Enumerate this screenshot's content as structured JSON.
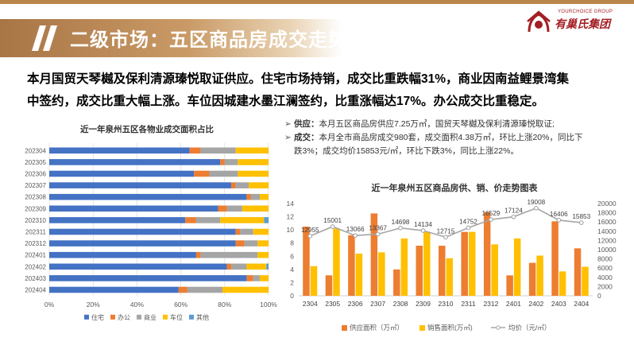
{
  "header": {
    "title": "二级市场：五区商品房成交走势",
    "logo_sub": "YOURCHOICE GROUP",
    "logo_main": "有巢氏集团"
  },
  "summary": {
    "line1": "本月国贸天琴樾及保利清源瑧悦取证供应。住宅市场持销，成交比重跌幅31%，商业因南益鲤景湾集",
    "line2": "中签约，成交比重大幅上涨。车位因城建水墨江澜签约，比重涨幅达17%。办公成交比重稳定。"
  },
  "notes": {
    "supply_label": "供应：",
    "supply_text": "本月五区商品房供应7.25万㎡，国贸天琴樾及保利清源瑧悦取证;",
    "deal_label": "成交：",
    "deal_text_1": "本月全市商品房成交980套，成交面积4.38万㎡，环比上涨20%，同比下",
    "deal_text_2": "跌3%；成交均价15853元/㎡，环比下跌3%，同比上涨22%。",
    "bullet": "➢"
  },
  "chart_data": [
    {
      "type": "bar",
      "orientation": "horizontal",
      "stacked": true,
      "title": "近一年泉州五区各物业成交面积占比",
      "categories": [
        "202304",
        "202305",
        "202306",
        "202307",
        "202308",
        "202309",
        "202310",
        "202311",
        "202312",
        "202401",
        "202402",
        "202403",
        "202404"
      ],
      "series": [
        {
          "name": "住宅",
          "color": "#4472c4",
          "values": [
            64,
            78,
            66,
            83,
            90,
            77,
            62,
            85,
            85,
            67,
            81,
            90,
            59
          ]
        },
        {
          "name": "办公",
          "color": "#ed7d31",
          "values": [
            5,
            2,
            7,
            2,
            2,
            4,
            5,
            2,
            4,
            2,
            2,
            3,
            4
          ]
        },
        {
          "name": "商业",
          "color": "#a5a5a5",
          "values": [
            16,
            6,
            13,
            6,
            4,
            7,
            11,
            6,
            6,
            26,
            7,
            3,
            16
          ]
        },
        {
          "name": "车位",
          "color": "#ffc000",
          "values": [
            15,
            14,
            14,
            9,
            4,
            12,
            20,
            7,
            5,
            5,
            9,
            4,
            21
          ]
        },
        {
          "name": "其他",
          "color": "#5b9bd5",
          "values": [
            0,
            0,
            0,
            0,
            0,
            0,
            2,
            0,
            0,
            0,
            1,
            0,
            0
          ]
        }
      ],
      "xticks": [
        "0%",
        "20%",
        "40%",
        "60%",
        "80%",
        "100%"
      ],
      "xlim": [
        0,
        100
      ],
      "legend": "bottom",
      "grid": true
    },
    {
      "type": "bar",
      "combo": "bar+line",
      "title": "近一年泉州五区商品房供、销、价走势图表",
      "categories": [
        "2304",
        "2305",
        "2306",
        "2307",
        "2308",
        "2309",
        "2310",
        "2311",
        "2312",
        "2401",
        "2402",
        "2403",
        "2404"
      ],
      "series": [
        {
          "name": "供应面积（万㎡）",
          "color": "#ed7d31",
          "axis": "left",
          "values": [
            10.5,
            3.1,
            9.2,
            12.5,
            4.0,
            7.6,
            7.6,
            9.7,
            12.7,
            3.1,
            5.0,
            11.3,
            7.2
          ]
        },
        {
          "name": "销售面积(万㎡)",
          "color": "#ffc000",
          "axis": "left",
          "values": [
            4.5,
            10.2,
            6.4,
            6.6,
            8.7,
            9.7,
            5.7,
            9.7,
            7.8,
            8.7,
            6.1,
            3.7,
            4.4
          ]
        },
        {
          "name": "均价（元/㎡）",
          "color": "#a5a5a5",
          "axis": "right",
          "type": "line",
          "values": [
            12955,
            15001,
            13066,
            13367,
            14698,
            14134,
            12715,
            14752,
            16529,
            17124,
            19008,
            16406,
            15853
          ]
        }
      ],
      "price_labels": [
        "12955",
        "15001",
        "13066",
        "13367",
        "14698",
        "14134",
        "12715",
        "14752",
        "16529",
        "17124",
        "19008",
        "16406",
        "15853"
      ],
      "y_left_ticks": [
        "0",
        "2",
        "4",
        "6",
        "8",
        "10",
        "12",
        "14"
      ],
      "y_right_ticks": [
        "0",
        "2000",
        "4000",
        "6000",
        "8000",
        "10000",
        "12000",
        "14000",
        "16000",
        "18000",
        "20000"
      ],
      "ylim_left": [
        0,
        14
      ],
      "ylim_right": [
        0,
        20000
      ],
      "legend": "bottom",
      "grid": false
    }
  ]
}
